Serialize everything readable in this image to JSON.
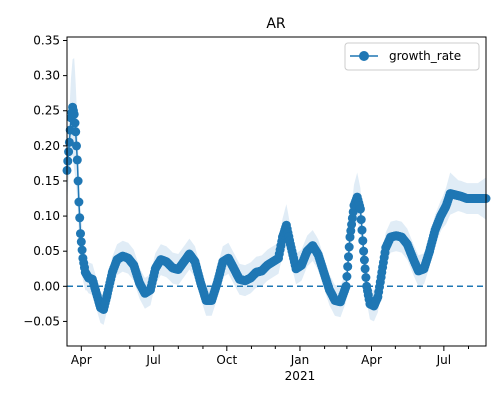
{
  "chart_data": {
    "type": "line",
    "title": "AR",
    "xlabel": "",
    "ylabel": "",
    "x_start": "2020-03-14",
    "x_end": "2021-08-23",
    "xlim": [
      "2020-03-14",
      "2021-08-23"
    ],
    "ylim": [
      -0.085,
      0.355
    ],
    "x_ticks": [
      {
        "date": "2020-04-01",
        "label": "Apr"
      },
      {
        "date": "2020-07-01",
        "label": "Jul"
      },
      {
        "date": "2020-10-01",
        "label": "Oct"
      },
      {
        "date": "2021-01-01",
        "label": "Jan"
      },
      {
        "date": "2021-04-01",
        "label": "Apr"
      },
      {
        "date": "2021-07-01",
        "label": "Jul"
      }
    ],
    "x_minor_ticks": [
      "2020-05-01",
      "2020-06-01",
      "2020-08-01",
      "2020-09-01",
      "2020-11-01",
      "2020-12-01",
      "2021-02-01",
      "2021-03-01",
      "2021-05-01",
      "2021-06-01",
      "2021-08-01"
    ],
    "x_year_label": {
      "date": "2021-01-01",
      "label": "2021"
    },
    "y_ticks": [
      -0.05,
      0.0,
      0.05,
      0.1,
      0.15,
      0.2,
      0.25,
      0.3,
      0.35
    ],
    "y_tick_labels": [
      "−0.05",
      "0.00",
      "0.05",
      "0.10",
      "0.15",
      "0.20",
      "0.25",
      "0.30",
      "0.35"
    ],
    "reference_line": {
      "y": 0.0,
      "style": "dashed",
      "color": "#1f77b4"
    },
    "legend": {
      "position": "top-right",
      "entries": [
        "growth_rate"
      ]
    },
    "colors": {
      "line": "#1f77b4",
      "band": "#c6dcef"
    },
    "series": [
      {
        "name": "growth_rate",
        "marker": "circle",
        "band_halfwidth_default": 0.022,
        "points": [
          [
            "2020-03-14",
            0.165
          ],
          [
            "2020-03-17",
            0.205
          ],
          [
            "2020-03-19",
            0.24
          ],
          [
            "2020-03-21",
            0.255
          ],
          [
            "2020-03-23",
            0.245
          ],
          [
            "2020-03-25",
            0.22
          ],
          [
            "2020-03-27",
            0.18
          ],
          [
            "2020-03-29",
            0.12
          ],
          [
            "2020-03-31",
            0.075
          ],
          [
            "2020-04-03",
            0.04
          ],
          [
            "2020-04-06",
            0.02
          ],
          [
            "2020-04-10",
            0.012
          ],
          [
            "2020-04-15",
            0.01
          ],
          [
            "2020-04-20",
            -0.01
          ],
          [
            "2020-04-25",
            -0.03
          ],
          [
            "2020-04-29",
            -0.033
          ],
          [
            "2020-05-04",
            -0.01
          ],
          [
            "2020-05-10",
            0.02
          ],
          [
            "2020-05-16",
            0.038
          ],
          [
            "2020-05-23",
            0.043
          ],
          [
            "2020-05-30",
            0.04
          ],
          [
            "2020-06-06",
            0.03
          ],
          [
            "2020-06-13",
            0.005
          ],
          [
            "2020-06-20",
            -0.01
          ],
          [
            "2020-06-27",
            -0.005
          ],
          [
            "2020-07-03",
            0.025
          ],
          [
            "2020-07-10",
            0.038
          ],
          [
            "2020-07-17",
            0.035
          ],
          [
            "2020-07-25",
            0.026
          ],
          [
            "2020-08-01",
            0.024
          ],
          [
            "2020-08-08",
            0.035
          ],
          [
            "2020-08-15",
            0.046
          ],
          [
            "2020-08-22",
            0.035
          ],
          [
            "2020-08-29",
            0.005
          ],
          [
            "2020-09-05",
            -0.02
          ],
          [
            "2020-09-12",
            -0.02
          ],
          [
            "2020-09-19",
            0.005
          ],
          [
            "2020-09-26",
            0.035
          ],
          [
            "2020-10-03",
            0.04
          ],
          [
            "2020-10-10",
            0.025
          ],
          [
            "2020-10-17",
            0.01
          ],
          [
            "2020-10-24",
            0.008
          ],
          [
            "2020-10-31",
            0.012
          ],
          [
            "2020-11-07",
            0.02
          ],
          [
            "2020-11-14",
            0.022
          ],
          [
            "2020-11-21",
            0.03
          ],
          [
            "2020-11-28",
            0.035
          ],
          [
            "2020-12-05",
            0.04
          ],
          [
            "2020-12-10",
            0.07
          ],
          [
            "2020-12-15",
            0.087
          ],
          [
            "2020-12-20",
            0.06
          ],
          [
            "2020-12-27",
            0.025
          ],
          [
            "2021-01-03",
            0.03
          ],
          [
            "2021-01-10",
            0.05
          ],
          [
            "2021-01-17",
            0.058
          ],
          [
            "2021-01-24",
            0.045
          ],
          [
            "2021-01-31",
            0.02
          ],
          [
            "2021-02-07",
            -0.005
          ],
          [
            "2021-02-14",
            -0.02
          ],
          [
            "2021-02-21",
            -0.022
          ],
          [
            "2021-02-28",
            0.0
          ],
          [
            "2021-03-05",
            0.07
          ],
          [
            "2021-03-10",
            0.115
          ],
          [
            "2021-03-14",
            0.127
          ],
          [
            "2021-03-18",
            0.11
          ],
          [
            "2021-03-22",
            0.05
          ],
          [
            "2021-03-26",
            0.0
          ],
          [
            "2021-03-30",
            -0.025
          ],
          [
            "2021-04-04",
            -0.028
          ],
          [
            "2021-04-09",
            -0.015
          ],
          [
            "2021-04-14",
            0.02
          ],
          [
            "2021-04-19",
            0.055
          ],
          [
            "2021-04-25",
            0.07
          ],
          [
            "2021-05-02",
            0.072
          ],
          [
            "2021-05-09",
            0.07
          ],
          [
            "2021-05-16",
            0.06
          ],
          [
            "2021-05-23",
            0.04
          ],
          [
            "2021-05-30",
            0.022
          ],
          [
            "2021-06-06",
            0.025
          ],
          [
            "2021-06-13",
            0.05
          ],
          [
            "2021-06-20",
            0.08
          ],
          [
            "2021-06-27",
            0.1
          ],
          [
            "2021-07-04",
            0.115
          ],
          [
            "2021-07-09",
            0.132
          ],
          [
            "2021-07-16",
            0.13
          ],
          [
            "2021-07-23",
            0.128
          ],
          [
            "2021-07-30",
            0.125
          ],
          [
            "2021-08-10",
            0.125
          ],
          [
            "2021-08-23",
            0.125
          ]
        ],
        "band_overrides": [
          [
            "2020-03-14",
            0.045
          ],
          [
            "2020-03-23",
            0.08
          ],
          [
            "2020-03-29",
            0.04
          ],
          [
            "2020-04-10",
            0.02
          ],
          [
            "2020-12-15",
            0.03
          ],
          [
            "2021-03-14",
            0.035
          ],
          [
            "2021-07-09",
            0.03
          ],
          [
            "2021-08-23",
            0.03
          ]
        ]
      }
    ]
  }
}
